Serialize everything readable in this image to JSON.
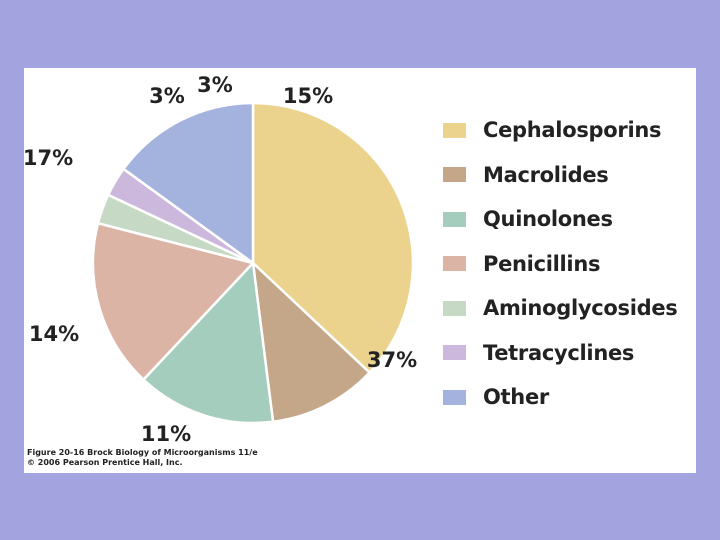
{
  "chart_data": {
    "type": "pie",
    "categories": [
      "Cephalosporins",
      "Macrolides",
      "Quinolones",
      "Penicillins",
      "Aminoglycosides",
      "Tetracyclines",
      "Other"
    ],
    "values": [
      37,
      11,
      14,
      17,
      3,
      3,
      15
    ],
    "value_labels": [
      "37%",
      "11%",
      "14%",
      "17%",
      "3%",
      "3%",
      "15%"
    ],
    "colors": [
      "#ebd38d",
      "#c4a689",
      "#a5cdbd",
      "#dbb4a6",
      "#c6d9c4",
      "#cdb8dd",
      "#a3b3de"
    ],
    "legend_position": "right",
    "start_at": "top",
    "direction": "clockwise"
  },
  "credit": {
    "line1": "Figure 20-16 Brock Biology of Microorganisms 11/e",
    "line2": "© 2006 Pearson Prentice Hall, Inc."
  }
}
